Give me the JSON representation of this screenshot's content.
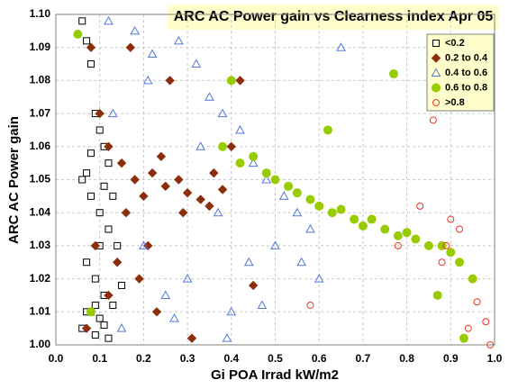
{
  "chart_data": {
    "type": "scatter",
    "title": "ARC AC Power gain vs Clearness index Apr 05",
    "x_label": "Gi POA Irrad kW/m2",
    "y_label": "ARC AC Power gain",
    "xlim": [
      0,
      1
    ],
    "ylim": [
      1,
      1.1
    ],
    "xticks": [
      {
        "value": 0,
        "label": "0.0"
      },
      0.1,
      0.2,
      0.3,
      0.4,
      0.5,
      0.6,
      0.7,
      0.8,
      0.9,
      {
        "value": 1,
        "label": "1.0"
      }
    ],
    "yticks": [
      {
        "value": 1,
        "label": "1.00"
      },
      1.01,
      1.02,
      1.03,
      1.04,
      1.05,
      1.06,
      1.07,
      1.08,
      1.09,
      {
        "value": 1.1,
        "label": "1.10"
      }
    ],
    "grid": true,
    "legend": "upper right",
    "series": [
      {
        "name": "<0.2",
        "color": "#000000",
        "marker": "square",
        "filled": false,
        "x": [
          0.06,
          0.07,
          0.08,
          0.09,
          0.1,
          0.11,
          0.12,
          0.06,
          0.08,
          0.1,
          0.12,
          0.14,
          0.07,
          0.09,
          0.11,
          0.13,
          0.08,
          0.1,
          0.06,
          0.09,
          0.12,
          0.15,
          0.07,
          0.11,
          0.08,
          0.1,
          0.13,
          0.09,
          0.07,
          0.11
        ],
        "values": [
          1.098,
          1.092,
          1.085,
          1.07,
          1.065,
          1.06,
          1.055,
          1.05,
          1.045,
          1.04,
          1.035,
          1.03,
          1.025,
          1.02,
          1.015,
          1.012,
          1.01,
          1.008,
          1.005,
          1.003,
          1.002,
          1.018,
          1.052,
          1.048,
          1.058,
          1.03,
          1.045,
          1.012,
          1.01,
          1.006
        ]
      },
      {
        "name": "0.2 to 0.4",
        "color": "#8b2e0b",
        "marker": "diamond",
        "filled": true,
        "x": [
          0.08,
          0.1,
          0.12,
          0.15,
          0.18,
          0.2,
          0.22,
          0.25,
          0.28,
          0.3,
          0.33,
          0.35,
          0.38,
          0.4,
          0.42,
          0.45,
          0.17,
          0.21,
          0.26,
          0.19,
          0.23,
          0.31,
          0.09,
          0.12,
          0.16,
          0.36,
          0.24,
          0.29,
          0.14,
          0.07
        ],
        "values": [
          1.09,
          1.07,
          1.06,
          1.055,
          1.05,
          1.045,
          1.052,
          1.048,
          1.05,
          1.046,
          1.044,
          1.042,
          1.047,
          1.06,
          1.08,
          1.018,
          1.09,
          1.03,
          1.08,
          1.02,
          1.01,
          1.002,
          1.03,
          1.015,
          1.04,
          1.052,
          1.057,
          1.04,
          1.025,
          1.005
        ]
      },
      {
        "name": "0.4 to 0.6",
        "color": "#5577dd",
        "marker": "triangle",
        "filled": false,
        "x": [
          0.12,
          0.18,
          0.22,
          0.28,
          0.32,
          0.35,
          0.38,
          0.42,
          0.45,
          0.48,
          0.52,
          0.55,
          0.58,
          0.3,
          0.25,
          0.4,
          0.15,
          0.2,
          0.33,
          0.44,
          0.5,
          0.6,
          0.27,
          0.37,
          0.21,
          0.47,
          0.13,
          0.39,
          0.56,
          0.65
        ],
        "values": [
          1.098,
          1.095,
          1.088,
          1.092,
          1.085,
          1.075,
          1.07,
          1.065,
          1.055,
          1.05,
          1.045,
          1.04,
          1.035,
          1.02,
          1.015,
          1.01,
          1.005,
          1.03,
          1.06,
          1.025,
          1.03,
          1.02,
          1.008,
          1.04,
          1.08,
          1.012,
          1.07,
          1.002,
          1.025,
          1.09
        ]
      },
      {
        "name": "0.6 to 0.8",
        "color": "#99cc00",
        "marker": "circle",
        "filled": true,
        "x": [
          0.38,
          0.42,
          0.45,
          0.48,
          0.5,
          0.53,
          0.55,
          0.58,
          0.6,
          0.63,
          0.65,
          0.68,
          0.7,
          0.72,
          0.75,
          0.78,
          0.8,
          0.82,
          0.85,
          0.88,
          0.9,
          0.92,
          0.95,
          0.05,
          0.08,
          0.4,
          0.62,
          0.77,
          0.87,
          0.93
        ],
        "values": [
          1.06,
          1.055,
          1.057,
          1.052,
          1.05,
          1.048,
          1.046,
          1.044,
          1.042,
          1.04,
          1.041,
          1.038,
          1.036,
          1.038,
          1.035,
          1.033,
          1.034,
          1.032,
          1.03,
          1.03,
          1.028,
          1.025,
          1.02,
          1.094,
          1.01,
          1.08,
          1.065,
          1.082,
          1.015,
          1.002
        ]
      },
      {
        "name": ">0.8",
        "color": "#ee3322",
        "marker": "circle",
        "filled": false,
        "x": [
          0.58,
          0.78,
          0.83,
          0.86,
          0.88,
          0.89,
          0.9,
          0.92,
          0.94,
          0.96,
          0.98,
          0.99
        ],
        "values": [
          1.012,
          1.03,
          1.042,
          1.068,
          1.025,
          1.03,
          1.038,
          1.035,
          1.005,
          1.013,
          1.007,
          1.0
        ]
      }
    ]
  }
}
